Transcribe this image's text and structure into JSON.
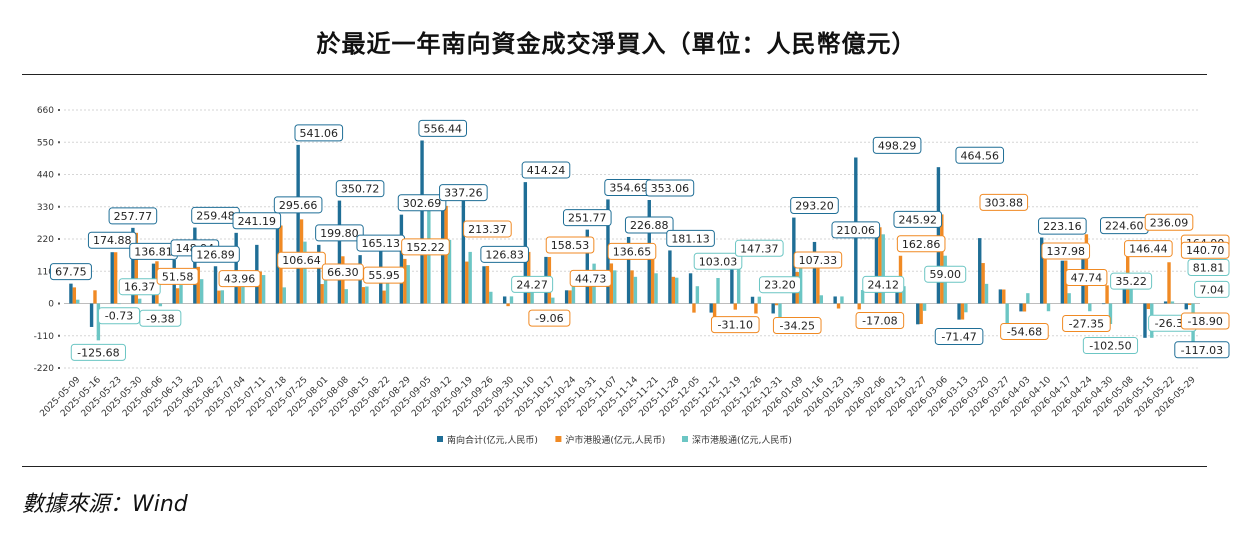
{
  "header": {
    "title": "於最近一年南向資金成交淨買入（單位：人民幣億元）"
  },
  "footer": {
    "source": "數據來源：Wind"
  },
  "chart_data": {
    "type": "bar",
    "ylim": [
      -220,
      660
    ],
    "yticks": [
      660,
      550,
      440,
      330,
      220,
      110,
      0,
      -110,
      -220
    ],
    "grid": true,
    "legend_position": "bottom",
    "colors": {
      "南向合计(亿元,人民币)": "#1f6e96",
      "沪市港股通(亿元,人民币)": "#f08a24",
      "深市港股通(亿元,人民币)": "#6cc6c4"
    },
    "categories": [
      "2025-05-09",
      "2025-05-16",
      "2025-05-23",
      "2025-05-30",
      "2025-06-06",
      "2025-06-13",
      "2025-06-20",
      "2025-06-27",
      "2025-07-04",
      "2025-07-11",
      "2025-07-18",
      "2025-07-25",
      "2025-08-01",
      "2025-08-08",
      "2025-08-15",
      "2025-08-22",
      "2025-08-29",
      "2025-09-05",
      "2025-09-12",
      "2025-09-19",
      "2025-09-26",
      "2025-09-30",
      "2025-10-10",
      "2025-10-17",
      "2025-10-24",
      "2025-10-31",
      "2025-11-07",
      "2025-11-14",
      "2025-11-21",
      "2025-11-28",
      "2025-12-05",
      "2025-12-12",
      "2025-12-19",
      "2025-12-26",
      "2025-12-31",
      "2026-01-09",
      "2026-01-16",
      "2026-01-23",
      "2026-01-30",
      "2026-02-06",
      "2026-02-13",
      "2026-02-27",
      "2026-03-06",
      "2026-03-13",
      "2026-03-20",
      "2026-03-27",
      "2026-04-03",
      "2026-04-10",
      "2026-04-17",
      "2026-04-24",
      "2026-04-30",
      "2026-05-08",
      "2026-05-15",
      "2026-05-22",
      "2026-05-29"
    ],
    "series": [
      {
        "name": "南向合计(亿元,人民币)",
        "values": [
          67.75,
          -80,
          175,
          258,
          136,
          149,
          259,
          127,
          241,
          200,
          296,
          541,
          200,
          351,
          165,
          200,
          303,
          556,
          337,
          400,
          127,
          24,
          414,
          159,
          45,
          252,
          355,
          227,
          353,
          181,
          103,
          -31,
          147,
          23,
          -34,
          293,
          210,
          24,
          498,
          246,
          60,
          -71,
          465,
          -55,
          223,
          48,
          -27,
          225,
          146,
          165,
          0,
          82,
          -117,
          7,
          -20
        ]
      },
      {
        "name": "沪市港股通(亿元,人民币)",
        "values": [
          55,
          45,
          174.88,
          241,
          144,
          52,
          125,
          44,
          106.64,
          109,
          266,
          287,
          66.3,
          161,
          55.95,
          44,
          152.22,
          171,
          333,
          143,
          128,
          -9.06,
          176,
          158.53,
          44.73,
          110,
          136.65,
          113,
          167,
          91,
          -31.1,
          -50,
          -21,
          -34.25,
          -6,
          107.33,
          152,
          -17.08,
          -20,
          260,
          162.86,
          -70,
          303.88,
          -54.68,
          137.98,
          47.74,
          -27.35,
          164,
          146.44,
          236.09,
          62,
          164.9,
          -18.9,
          140.7,
          -5
        ]
      },
      {
        "name": "深市港股通(亿元,人民币)",
        "values": [
          13,
          -125.68,
          -0.73,
          16.37,
          -9.38,
          63,
          83,
          45,
          65,
          97,
          55,
          211,
          101,
          49,
          58,
          77,
          131,
          330,
          217,
          176,
          40,
          24.27,
          44,
          20,
          89,
          136,
          113,
          91,
          103.03,
          88,
          59,
          87,
          147.37,
          23.2,
          -68,
          163,
          28,
          24.12,
          46,
          236,
          59.0,
          -25,
          163,
          -30,
          67,
          -102.5,
          35.22,
          -26.36,
          35.22,
          -26.36,
          -70,
          81.81,
          -117.03,
          7.04,
          -148
        ]
      }
    ],
    "data_labels": [
      {
        "t": "67.75",
        "c": 0,
        "v": 67.75,
        "s": 0
      },
      {
        "t": "-125.68",
        "c": 1,
        "v": -125.68,
        "s": 2
      },
      {
        "t": "174.88",
        "c": 2,
        "v": 174.88,
        "s": 0
      },
      {
        "t": "-0.73",
        "c": 2,
        "v": -0.73,
        "s": 2
      },
      {
        "t": "257.77",
        "c": 3,
        "v": 257.77,
        "s": 0
      },
      {
        "t": "16.37",
        "c": 3,
        "v": 16.37,
        "s": 2
      },
      {
        "t": "136.81",
        "c": 4,
        "v": 136.81,
        "s": 0
      },
      {
        "t": "-9.38",
        "c": 4,
        "v": -9.38,
        "s": 2
      },
      {
        "t": "51.58",
        "c": 5,
        "v": 51.58,
        "s": 1
      },
      {
        "t": "148.94",
        "c": 6,
        "v": 148.94,
        "s": 0
      },
      {
        "t": "259.48",
        "c": 7,
        "v": 259.48,
        "s": 0
      },
      {
        "t": "126.89",
        "c": 7,
        "v": 126.89,
        "s": 0
      },
      {
        "t": "43.96",
        "c": 8,
        "v": 43.96,
        "s": 1
      },
      {
        "t": "241.19",
        "c": 9,
        "v": 241.19,
        "s": 0
      },
      {
        "t": "106.64",
        "c": 11,
        "v": 106.64,
        "s": 1
      },
      {
        "t": "295.66",
        "c": 11,
        "v": 295.66,
        "s": 0
      },
      {
        "t": "541.06",
        "c": 12,
        "v": 541.06,
        "s": 0
      },
      {
        "t": "199.80",
        "c": 13,
        "v": 199.8,
        "s": 0
      },
      {
        "t": "66.30",
        "c": 13,
        "v": 66.3,
        "s": 1
      },
      {
        "t": "350.72",
        "c": 14,
        "v": 350.72,
        "s": 0
      },
      {
        "t": "165.13",
        "c": 15,
        "v": 165.13,
        "s": 0
      },
      {
        "t": "55.95",
        "c": 15,
        "v": 55.95,
        "s": 1
      },
      {
        "t": "302.69",
        "c": 17,
        "v": 302.69,
        "s": 0
      },
      {
        "t": "152.22",
        "c": 17,
        "v": 152.22,
        "s": 1
      },
      {
        "t": "556.44",
        "c": 18,
        "v": 556.44,
        "s": 0
      },
      {
        "t": "337.26",
        "c": 19,
        "v": 337.26,
        "s": 0
      },
      {
        "t": "213.37",
        "c": 20,
        "v": 213.37,
        "s": 1
      },
      {
        "t": "126.83",
        "c": 21,
        "v": 126.83,
        "s": 0
      },
      {
        "t": "24.27",
        "c": 22,
        "v": 24.27,
        "s": 2
      },
      {
        "t": "-9.06",
        "c": 23,
        "v": -9.06,
        "s": 1
      },
      {
        "t": "414.24",
        "c": 23,
        "v": 414.24,
        "s": 0
      },
      {
        "t": "158.53",
        "c": 24,
        "v": 158.53,
        "s": 1
      },
      {
        "t": "44.73",
        "c": 25,
        "v": 44.73,
        "s": 1
      },
      {
        "t": "251.77",
        "c": 25,
        "v": 251.77,
        "s": 0
      },
      {
        "t": "354.69",
        "c": 27,
        "v": 354.69,
        "s": 0
      },
      {
        "t": "136.65",
        "c": 27,
        "v": 136.65,
        "s": 1
      },
      {
        "t": "226.88",
        "c": 28,
        "v": 226.88,
        "s": 0
      },
      {
        "t": "353.06",
        "c": 29,
        "v": 353.06,
        "s": 0
      },
      {
        "t": "181.13",
        "c": 30,
        "v": 181.13,
        "s": 0
      },
      {
        "t": "103.03",
        "c": 31,
        "v": 103.03,
        "s": 2
      },
      {
        "t": "-31.10",
        "c": 32,
        "v": -31.1,
        "s": 1
      },
      {
        "t": "147.37",
        "c": 33,
        "v": 147.37,
        "s": 2
      },
      {
        "t": "23.20",
        "c": 34,
        "v": 23.2,
        "s": 2
      },
      {
        "t": "-34.25",
        "c": 35,
        "v": -34.25,
        "s": 1
      },
      {
        "t": "293.20",
        "c": 36,
        "v": 293.2,
        "s": 0
      },
      {
        "t": "107.33",
        "c": 36,
        "v": 107.33,
        "s": 1
      },
      {
        "t": "210.06",
        "c": 38,
        "v": 210.06,
        "s": 0
      },
      {
        "t": "24.12",
        "c": 39,
        "v": 24.12,
        "s": 2
      },
      {
        "t": "-17.08",
        "c": 39,
        "v": -17.08,
        "s": 1
      },
      {
        "t": "498.29",
        "c": 40,
        "v": 498.29,
        "s": 0
      },
      {
        "t": "245.92",
        "c": 41,
        "v": 245.92,
        "s": 0
      },
      {
        "t": "162.86",
        "c": 41,
        "v": 162.86,
        "s": 1
      },
      {
        "t": "59.00",
        "c": 42,
        "v": 59.0,
        "s": 2
      },
      {
        "t": "-71.47",
        "c": 43,
        "v": -71.47,
        "s": 0
      },
      {
        "t": "464.56",
        "c": 44,
        "v": 464.56,
        "s": 0
      },
      {
        "t": "303.88",
        "c": 45,
        "v": 303.88,
        "s": 1
      },
      {
        "t": "-54.68",
        "c": 46,
        "v": -54.68,
        "s": 1
      },
      {
        "t": "223.16",
        "c": 48,
        "v": 223.16,
        "s": 0
      },
      {
        "t": "137.98",
        "c": 48,
        "v": 137.98,
        "s": 1
      },
      {
        "t": "47.74",
        "c": 49,
        "v": 47.74,
        "s": 1
      },
      {
        "t": "-27.35",
        "c": 49,
        "v": -27.35,
        "s": 1
      },
      {
        "t": "-102.50",
        "c": 50,
        "v": -102.5,
        "s": 2
      },
      {
        "t": "224.60",
        "c": 51,
        "v": 224.6,
        "s": 0
      },
      {
        "t": "35.22",
        "c": 51,
        "v": 35.22,
        "s": 2
      },
      {
        "t": "146.44",
        "c": 52,
        "v": 146.44,
        "s": 1
      },
      {
        "t": "236.09",
        "c": 53,
        "v": 236.09,
        "s": 1
      },
      {
        "t": "-26.36",
        "c": 53,
        "v": -26.36,
        "s": 2
      },
      {
        "t": "81.81",
        "c": 55,
        "v": 81.81,
        "s": 2
      },
      {
        "t": "164.90",
        "c": 56,
        "v": 164.9,
        "s": 1
      },
      {
        "t": "-18.90",
        "c": 56,
        "v": -18.9,
        "s": 1
      },
      {
        "t": "-117.03",
        "c": 56,
        "v": -117.03,
        "s": 0
      },
      {
        "t": "7.04",
        "c": 57,
        "v": 7.04,
        "s": 2
      },
      {
        "t": "140.70",
        "c": 57,
        "v": 140.7,
        "s": 1
      }
    ]
  }
}
